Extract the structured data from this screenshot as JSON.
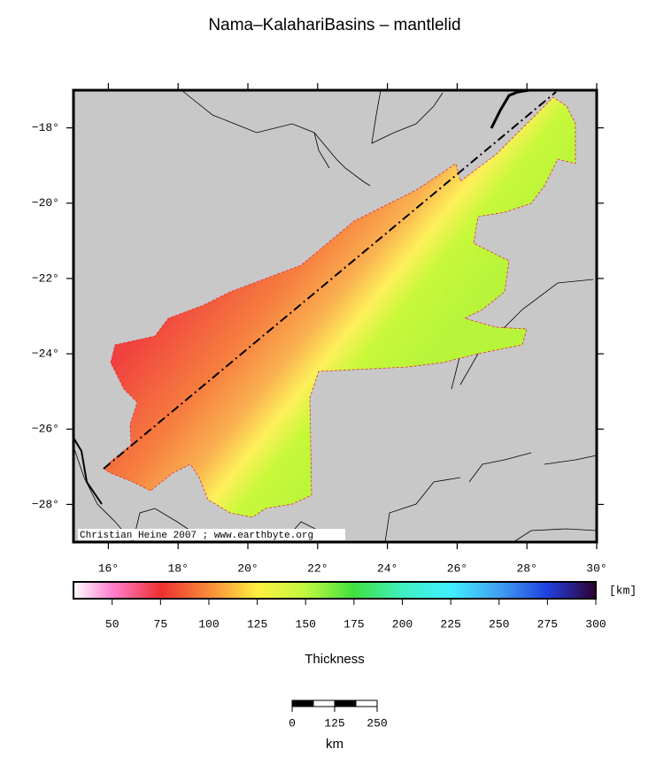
{
  "title": "Nama–KalahariBasins – mantlelid",
  "map": {
    "xlim": [
      15,
      30
    ],
    "ylim": [
      -29,
      -17
    ],
    "xticks": [
      {
        "value": 16,
        "label": "16°"
      },
      {
        "value": 18,
        "label": "18°"
      },
      {
        "value": 20,
        "label": "20°"
      },
      {
        "value": 22,
        "label": "22°"
      },
      {
        "value": 24,
        "label": "24°"
      },
      {
        "value": 26,
        "label": "26°"
      },
      {
        "value": 28,
        "label": "28°"
      },
      {
        "value": 30,
        "label": "30°"
      }
    ],
    "yticks": [
      {
        "value": -18,
        "label": "−18°"
      },
      {
        "value": -20,
        "label": "−20°"
      },
      {
        "value": -22,
        "label": "−22°"
      },
      {
        "value": -24,
        "label": "−24°"
      },
      {
        "value": -26,
        "label": "−26°"
      },
      {
        "value": -28,
        "label": "−28°"
      }
    ],
    "credit": "Christian Heine 2007 ; www.earthbyte.org"
  },
  "colorbar": {
    "label": "Thickness",
    "unit": "[km]",
    "lim": [
      30,
      300
    ],
    "ticks": [
      50,
      75,
      100,
      125,
      150,
      175,
      200,
      225,
      250,
      275,
      300
    ]
  },
  "scalebar": {
    "lim": [
      0,
      250
    ],
    "ticks": [
      0,
      125,
      250
    ],
    "unit": "km"
  }
}
